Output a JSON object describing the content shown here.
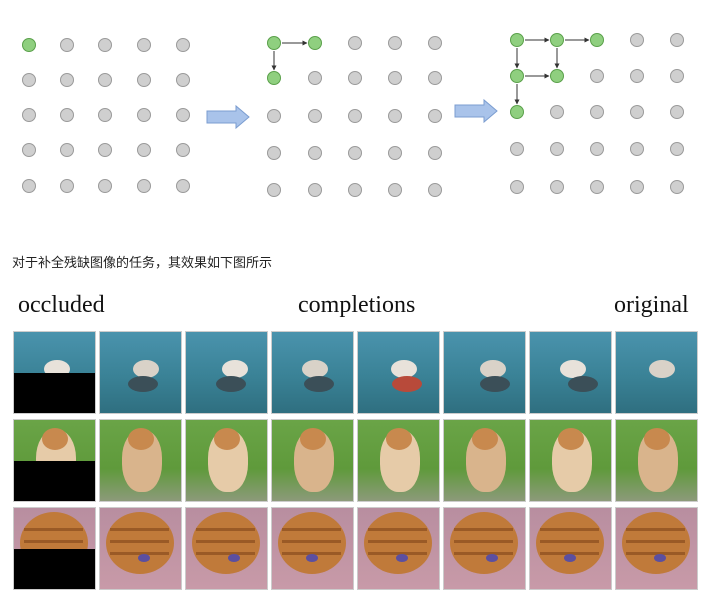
{
  "colors": {
    "node_active": "#8fcf7f",
    "node_active_stroke": "#5aa04a",
    "node_idle": "#cfcfcf",
    "node_idle_stroke": "#9a9a9a",
    "arrow_fill": "#a9c3ea",
    "arrow_stroke": "#7b9dd0",
    "sea": "#3d8aa0",
    "grass": "#5f9a3b",
    "pink": "#c89aa8",
    "wood": "#c07a3a"
  },
  "caption": "对于补全残缺图像的任务，其效果如下图所示",
  "headers": {
    "occluded": "occluded",
    "completions": "completions",
    "original": "original"
  },
  "image_rows": [
    {
      "subject": "bird-on-water",
      "tiles": [
        "occluded",
        "completion",
        "completion",
        "completion",
        "completion",
        "completion",
        "completion",
        "original"
      ]
    },
    {
      "subject": "pomeranian-dog",
      "tiles": [
        "occluded",
        "completion",
        "completion",
        "completion",
        "completion",
        "completion",
        "completion",
        "original"
      ]
    },
    {
      "subject": "wooden-object",
      "tiles": [
        "occluded",
        "completion",
        "completion",
        "completion",
        "completion",
        "completion",
        "completion",
        "original"
      ]
    }
  ],
  "icons": [
    "right-arrow-icon",
    "right-arrow-icon"
  ]
}
